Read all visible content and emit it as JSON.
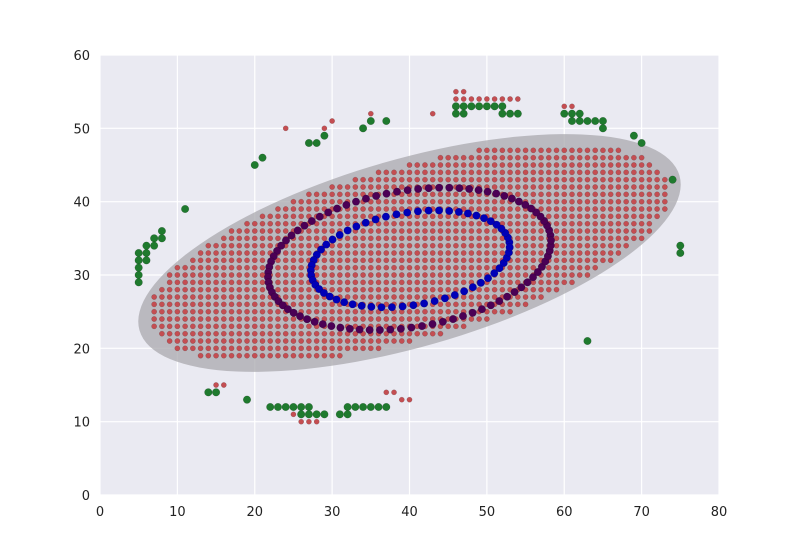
{
  "chart_data": {
    "type": "scatter",
    "title": "",
    "xlabel": "",
    "ylabel": "",
    "xlim": [
      0,
      80
    ],
    "ylim": [
      0,
      60
    ],
    "x_ticks": [
      0,
      10,
      20,
      30,
      40,
      50,
      60,
      70,
      80
    ],
    "y_ticks": [
      0,
      10,
      20,
      30,
      40,
      50,
      60
    ],
    "x_tick_labels": [
      "0",
      "10",
      "20",
      "30",
      "40",
      "50",
      "60",
      "70",
      "80"
    ],
    "y_tick_labels": [
      "0",
      "10",
      "20",
      "30",
      "40",
      "50",
      "60"
    ],
    "grid": true,
    "legend": "none",
    "background_color": "#EAEAF2",
    "ellipse": {
      "center": [
        40,
        33
      ],
      "semi_axes": [
        36.3,
        12.8
      ],
      "angle_deg": 16,
      "color": "#A9A8AE",
      "opacity": 0.75
    },
    "series": [
      {
        "color": "#C44E52",
        "marker_size": "small",
        "region": {
          "ellipse_center": [
            40,
            33
          ],
          "ellipse_semi_axes": [
            35,
            11.8
          ],
          "ellipse_angle_deg": 16,
          "grid_step": 1,
          "grid_x": [
            5,
            75
          ],
          "grid_y": [
            10,
            55
          ]
        },
        "extra_points": [
          [
            46,
            55
          ],
          [
            47,
            55
          ],
          [
            46,
            54
          ],
          [
            47,
            54
          ],
          [
            48,
            54
          ],
          [
            49,
            54
          ],
          [
            50,
            54
          ],
          [
            51,
            54
          ],
          [
            52,
            54
          ],
          [
            53,
            54
          ],
          [
            54,
            54
          ],
          [
            60,
            53
          ],
          [
            61,
            53
          ],
          [
            24,
            50
          ],
          [
            29,
            50
          ],
          [
            30,
            51
          ],
          [
            35,
            52
          ],
          [
            43,
            52
          ],
          [
            25,
            11
          ],
          [
            26,
            10
          ],
          [
            27,
            10
          ],
          [
            28,
            10
          ],
          [
            26,
            11
          ],
          [
            27,
            11
          ],
          [
            37,
            14
          ],
          [
            38,
            14
          ],
          [
            39,
            13
          ],
          [
            40,
            13
          ],
          [
            15,
            15
          ],
          [
            16,
            15
          ]
        ]
      },
      {
        "color": "#1F7A2E",
        "marker_size": "large",
        "points": [
          [
            5,
            33
          ],
          [
            5,
            32
          ],
          [
            5,
            31
          ],
          [
            5,
            30
          ],
          [
            5,
            29
          ],
          [
            6,
            34
          ],
          [
            6,
            33
          ],
          [
            6,
            32
          ],
          [
            7,
            35
          ],
          [
            7,
            34
          ],
          [
            8,
            36
          ],
          [
            8,
            35
          ],
          [
            11,
            39
          ],
          [
            14,
            14
          ],
          [
            15,
            14
          ],
          [
            19,
            13
          ],
          [
            20,
            45
          ],
          [
            21,
            46
          ],
          [
            22,
            12
          ],
          [
            23,
            12
          ],
          [
            24,
            12
          ],
          [
            25,
            12
          ],
          [
            26,
            12
          ],
          [
            27,
            12
          ],
          [
            26,
            11
          ],
          [
            27,
            11
          ],
          [
            28,
            11
          ],
          [
            29,
            11
          ],
          [
            27,
            48
          ],
          [
            28,
            48
          ],
          [
            29,
            49
          ],
          [
            31,
            11
          ],
          [
            32,
            11
          ],
          [
            32,
            12
          ],
          [
            33,
            12
          ],
          [
            34,
            12
          ],
          [
            35,
            12
          ],
          [
            36,
            12
          ],
          [
            37,
            12
          ],
          [
            34,
            50
          ],
          [
            35,
            51
          ],
          [
            37,
            51
          ],
          [
            46,
            53
          ],
          [
            47,
            53
          ],
          [
            48,
            53
          ],
          [
            46,
            52
          ],
          [
            47,
            52
          ],
          [
            49,
            53
          ],
          [
            50,
            53
          ],
          [
            51,
            53
          ],
          [
            52,
            53
          ],
          [
            52,
            52
          ],
          [
            53,
            52
          ],
          [
            54,
            52
          ],
          [
            60,
            52
          ],
          [
            61,
            52
          ],
          [
            62,
            52
          ],
          [
            61,
            51
          ],
          [
            62,
            51
          ],
          [
            63,
            51
          ],
          [
            64,
            51
          ],
          [
            65,
            51
          ],
          [
            65,
            50
          ],
          [
            69,
            49
          ],
          [
            70,
            48
          ],
          [
            74,
            43
          ],
          [
            75,
            34
          ],
          [
            75,
            33
          ],
          [
            63,
            21
          ]
        ]
      },
      {
        "color": "#0000B8",
        "marker_size": "large",
        "ellipse_ring": {
          "center": [
            40.1,
            32.2
          ],
          "semi_axes": [
            13.0,
            6.3
          ],
          "angle_deg": 10,
          "count": 58
        }
      },
      {
        "color": "#4B0055",
        "marker_size": "large",
        "ellipse_ring": {
          "center": [
            40.0,
            32.2
          ],
          "semi_axes": [
            18.5,
            9.3
          ],
          "angle_deg": 10,
          "count": 84
        }
      }
    ]
  }
}
